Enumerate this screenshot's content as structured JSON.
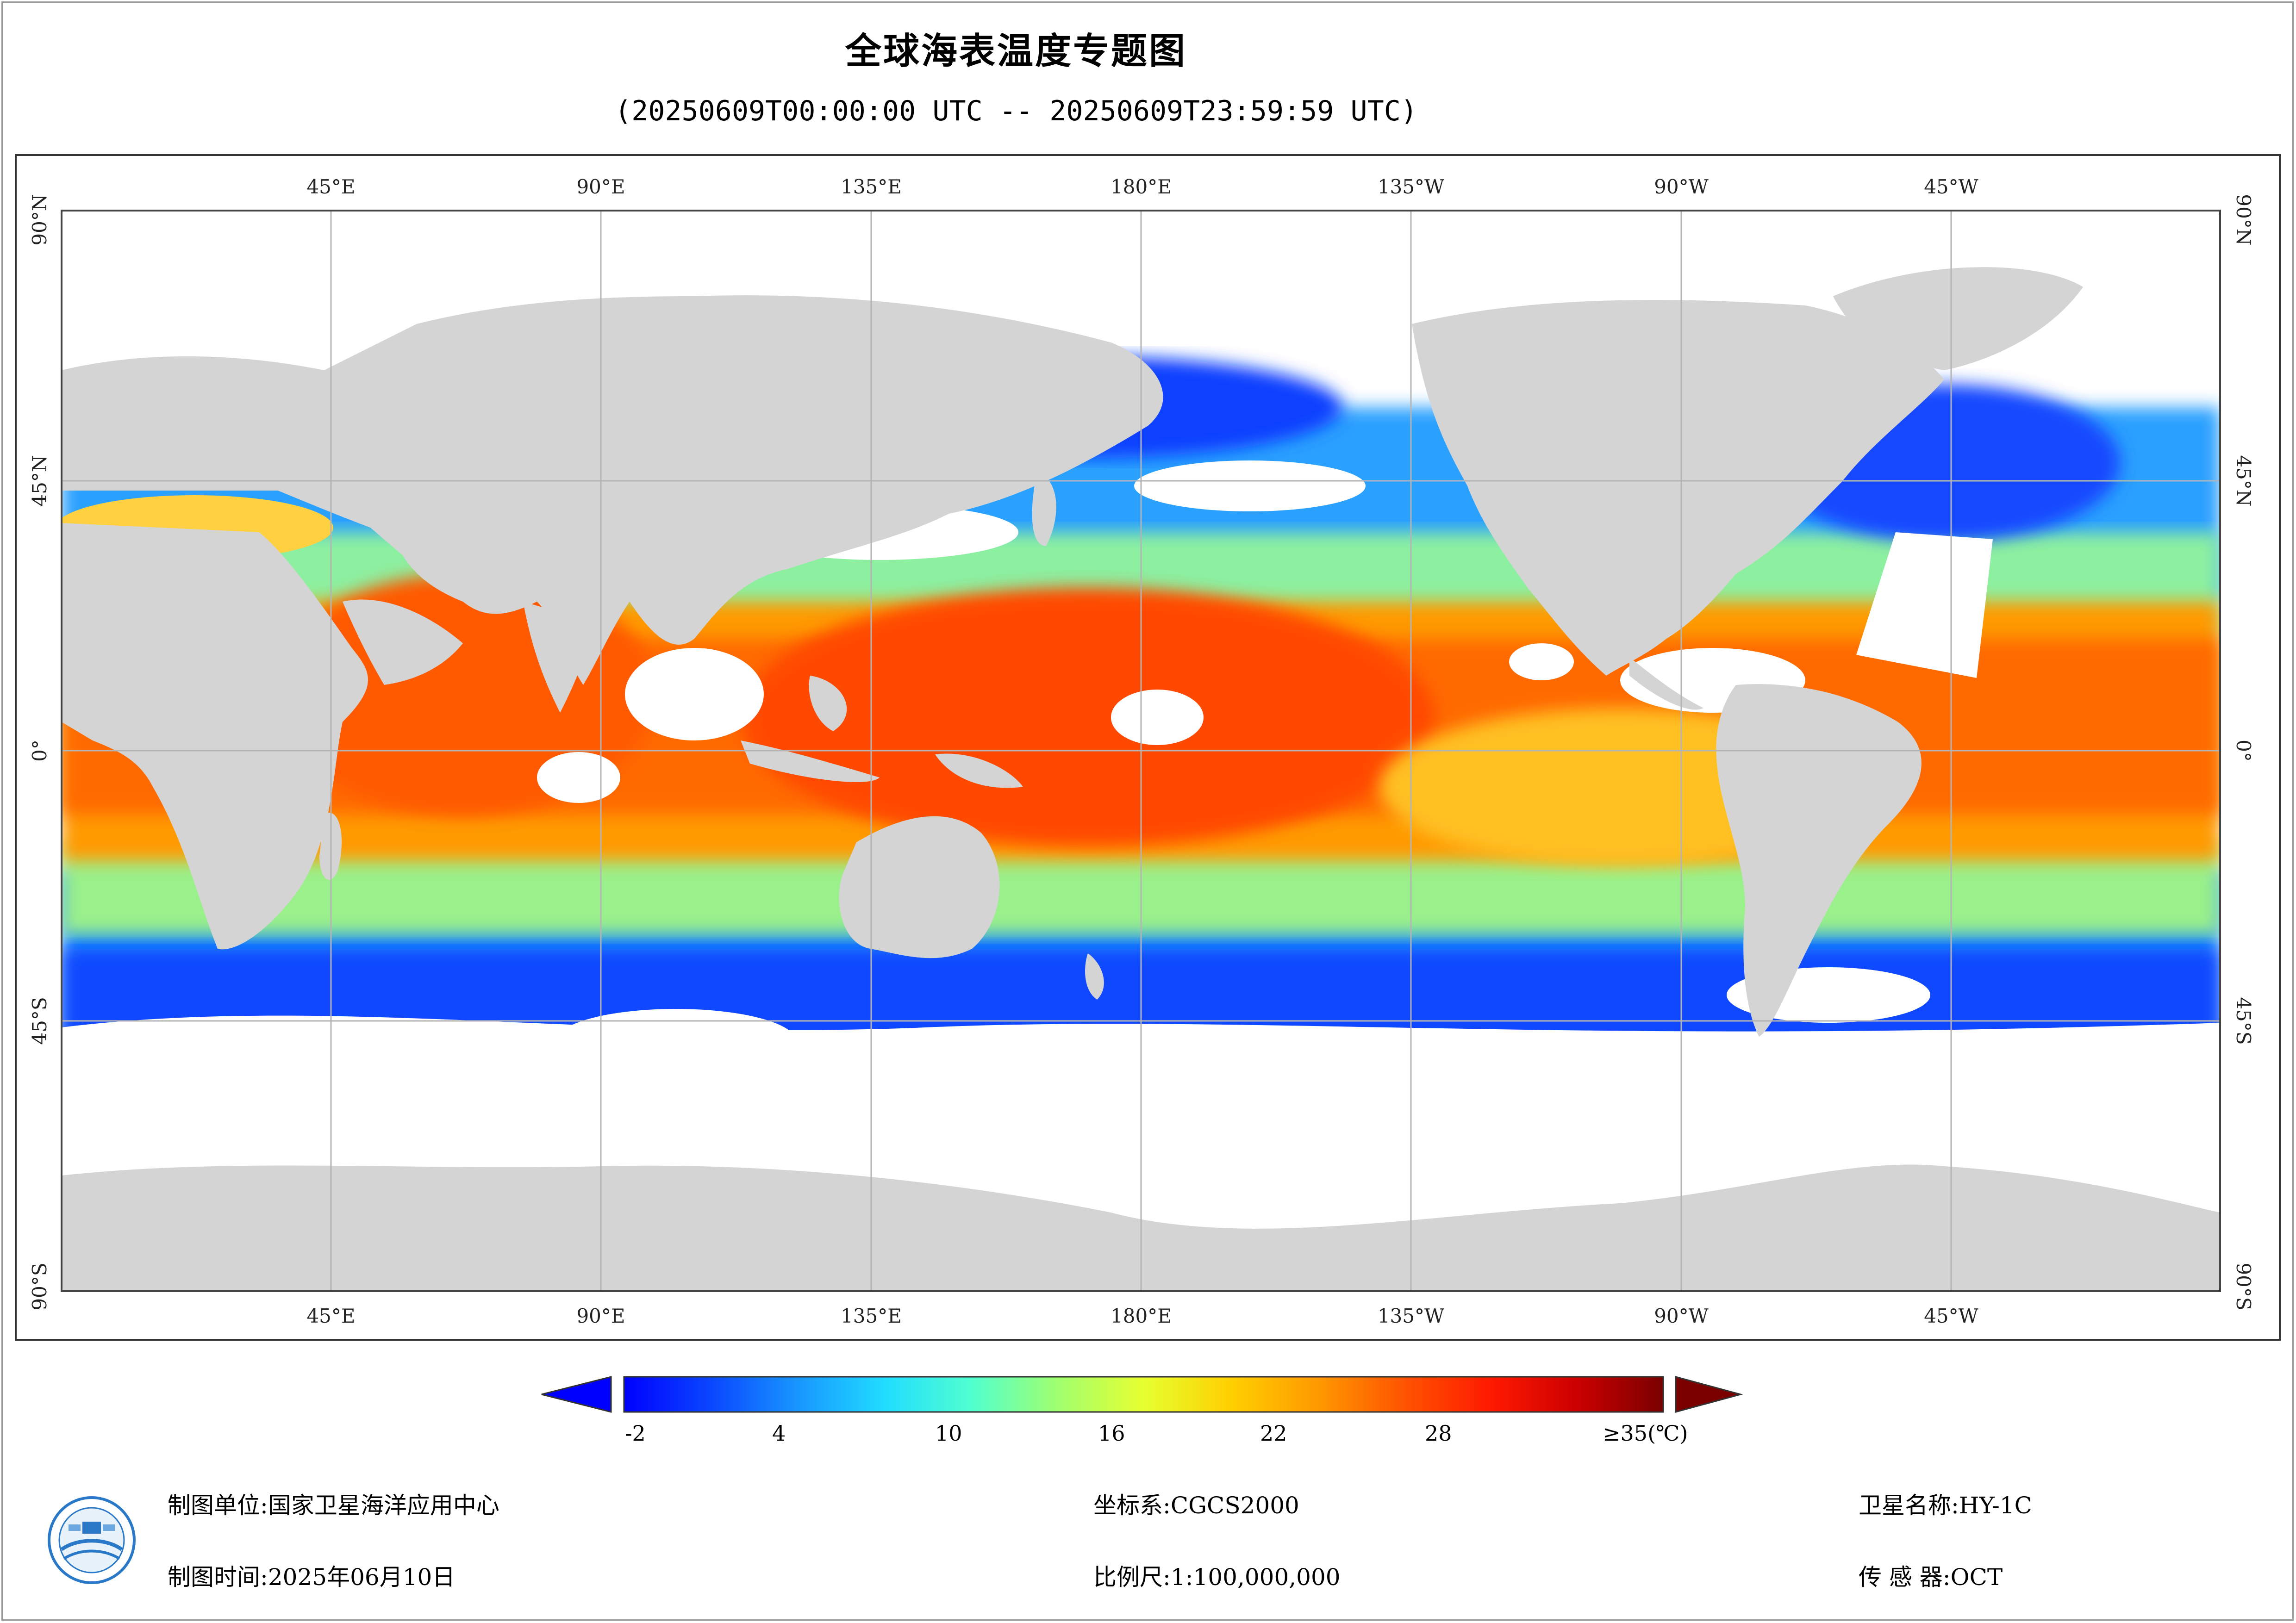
{
  "title": "全球海表温度专题图",
  "time_range": "(20250609T00:00:00 UTC -- 20250609T23:59:59 UTC)",
  "axes": {
    "top": [
      "45°E",
      "90°E",
      "135°E",
      "180°E",
      "135°W",
      "90°W",
      "45°W"
    ],
    "bottom": [
      "45°E",
      "90°E",
      "135°E",
      "180°E",
      "135°W",
      "90°W",
      "45°W"
    ],
    "left": [
      "90°N",
      "45°N",
      "0°",
      "45°S",
      "90°S"
    ],
    "right": [
      "90°N",
      "45°N",
      "0°",
      "45°S",
      "90°S"
    ]
  },
  "colors": {
    "land": "#d4d4d4",
    "no_data": "#ffffff",
    "grid": "#b4b4b4",
    "scale": [
      "#0000ff",
      "#0a46ff",
      "#1896ff",
      "#20dcff",
      "#50ffd0",
      "#a0ff70",
      "#e6ff30",
      "#ffd000",
      "#ff9a00",
      "#ff5400",
      "#ff1a00",
      "#cc0000",
      "#7a0000"
    ]
  },
  "colorbar": {
    "ticks": [
      "-2",
      "4",
      "10",
      "16",
      "22",
      "28"
    ],
    "max_label": "≥35(℃)"
  },
  "footer": {
    "producer_label": "制图单位:",
    "producer": "国家卫星海洋应用中心",
    "date_label": "制图时间:",
    "date": "2025年06月10日",
    "crs_label": "坐标系:",
    "crs": "CGCS2000",
    "scale_label": "比例尺:",
    "scale": "1:100,000,000",
    "satellite_label": "卫星名称:",
    "satellite": "HY-1C",
    "sensor_label": "传 感 器:",
    "sensor": "OCT"
  }
}
